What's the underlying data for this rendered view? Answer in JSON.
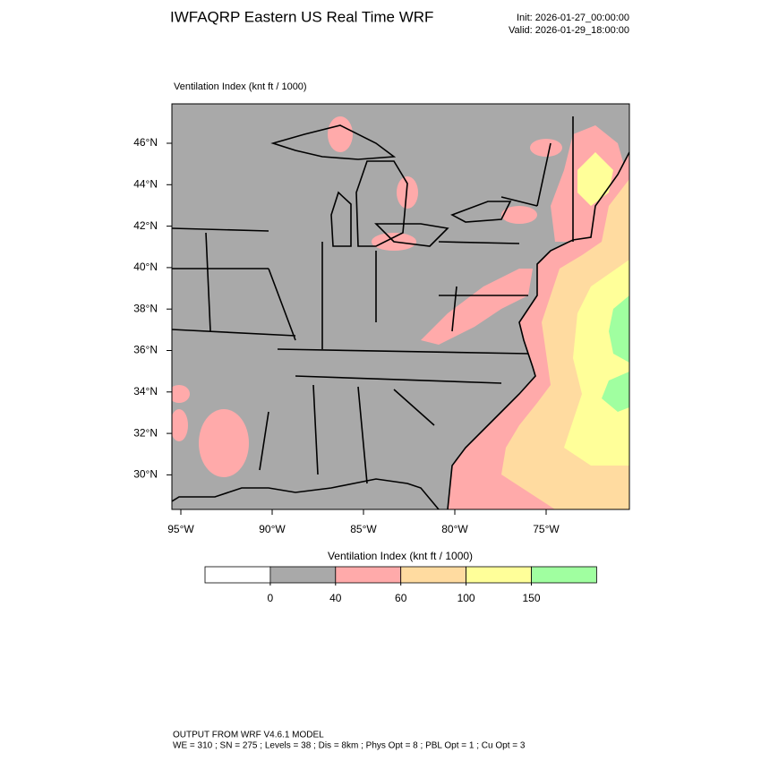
{
  "header": {
    "title": "IWFAQRP Eastern US Real Time WRF",
    "init": "Init: 2026-01-27_00:00:00",
    "valid": "Valid: 2026-01-29_18:00:00"
  },
  "map": {
    "label": "Ventilation Index   (knt ft / 1000)",
    "lat_ticks": [
      {
        "value": 46,
        "label": "46°N"
      },
      {
        "value": 44,
        "label": "44°N"
      },
      {
        "value": 42,
        "label": "42°N"
      },
      {
        "value": 40,
        "label": "40°N"
      },
      {
        "value": 38,
        "label": "38°N"
      },
      {
        "value": 36,
        "label": "36°N"
      },
      {
        "value": 34,
        "label": "34°N"
      },
      {
        "value": 32,
        "label": "32°N"
      },
      {
        "value": 30,
        "label": "30°N"
      }
    ],
    "lon_ticks": [
      {
        "value": -95,
        "label": "95°W"
      },
      {
        "value": -90,
        "label": "90°W"
      },
      {
        "value": -85,
        "label": "85°W"
      },
      {
        "value": -80,
        "label": "80°W"
      },
      {
        "value": -75,
        "label": "75°W"
      }
    ]
  },
  "colorbar": {
    "title": "Ventilation Index  (knt ft / 1000)",
    "levels": [
      0,
      40,
      60,
      100,
      150
    ],
    "colors": [
      "#ffffff",
      "#a9a9a9",
      "#ffaaaa",
      "#ffdba0",
      "#ffff99",
      "#a0ffa0"
    ]
  },
  "footer": {
    "line1": "OUTPUT FROM WRF V4.6.1 MODEL",
    "line2": "WE = 310 ; SN = 275 ; Levels = 38 ; Dis = 8km ; Phys Opt = 8 ; PBL Opt = 1 ; Cu Opt = 3"
  }
}
